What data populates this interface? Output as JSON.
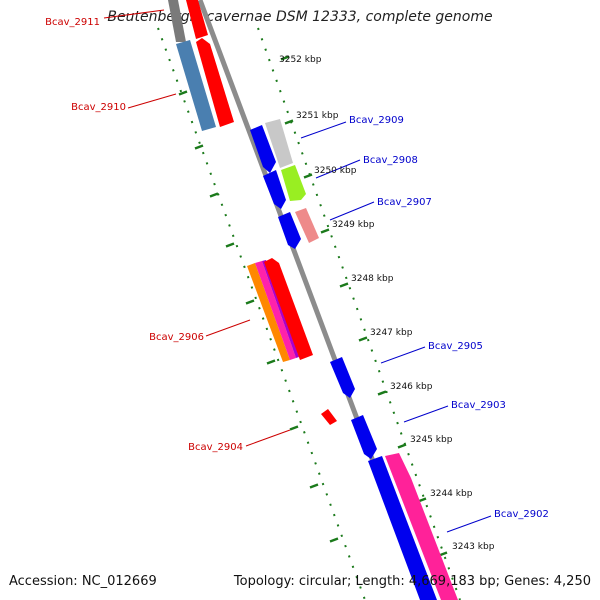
{
  "title": "Beutenbergia cavernae DSM 12333, complete genome",
  "footer": {
    "accession": "Accession: NC_012669",
    "summary": "Topology: circular; Length: 4,669,183 bp; Genes: 4,250"
  },
  "colors": {
    "backbone": "#8c8c8c",
    "tick": "#1b7a1b",
    "forward_label": "#0000cc",
    "reverse_label": "#cc0000"
  },
  "ticks": [
    "3252 kbp",
    "3251 kbp",
    "3250 kbp",
    "3249 kbp",
    "3248 kbp",
    "3247 kbp",
    "3246 kbp",
    "3245 kbp",
    "3244 kbp",
    "3243 kbp"
  ],
  "genes": [
    {
      "label": "Bcav_2911",
      "strand": "reverse"
    },
    {
      "label": "Bcav_2910",
      "strand": "reverse"
    },
    {
      "label": "Bcav_2909",
      "strand": "forward"
    },
    {
      "label": "Bcav_2908",
      "strand": "forward"
    },
    {
      "label": "Bcav_2907",
      "strand": "forward"
    },
    {
      "label": "Bcav_2906",
      "strand": "reverse"
    },
    {
      "label": "Bcav_2905",
      "strand": "forward"
    },
    {
      "label": "Bcav_2904",
      "strand": "reverse"
    },
    {
      "label": "Bcav_2903",
      "strand": "forward"
    },
    {
      "label": "Bcav_2902",
      "strand": "forward"
    }
  ]
}
